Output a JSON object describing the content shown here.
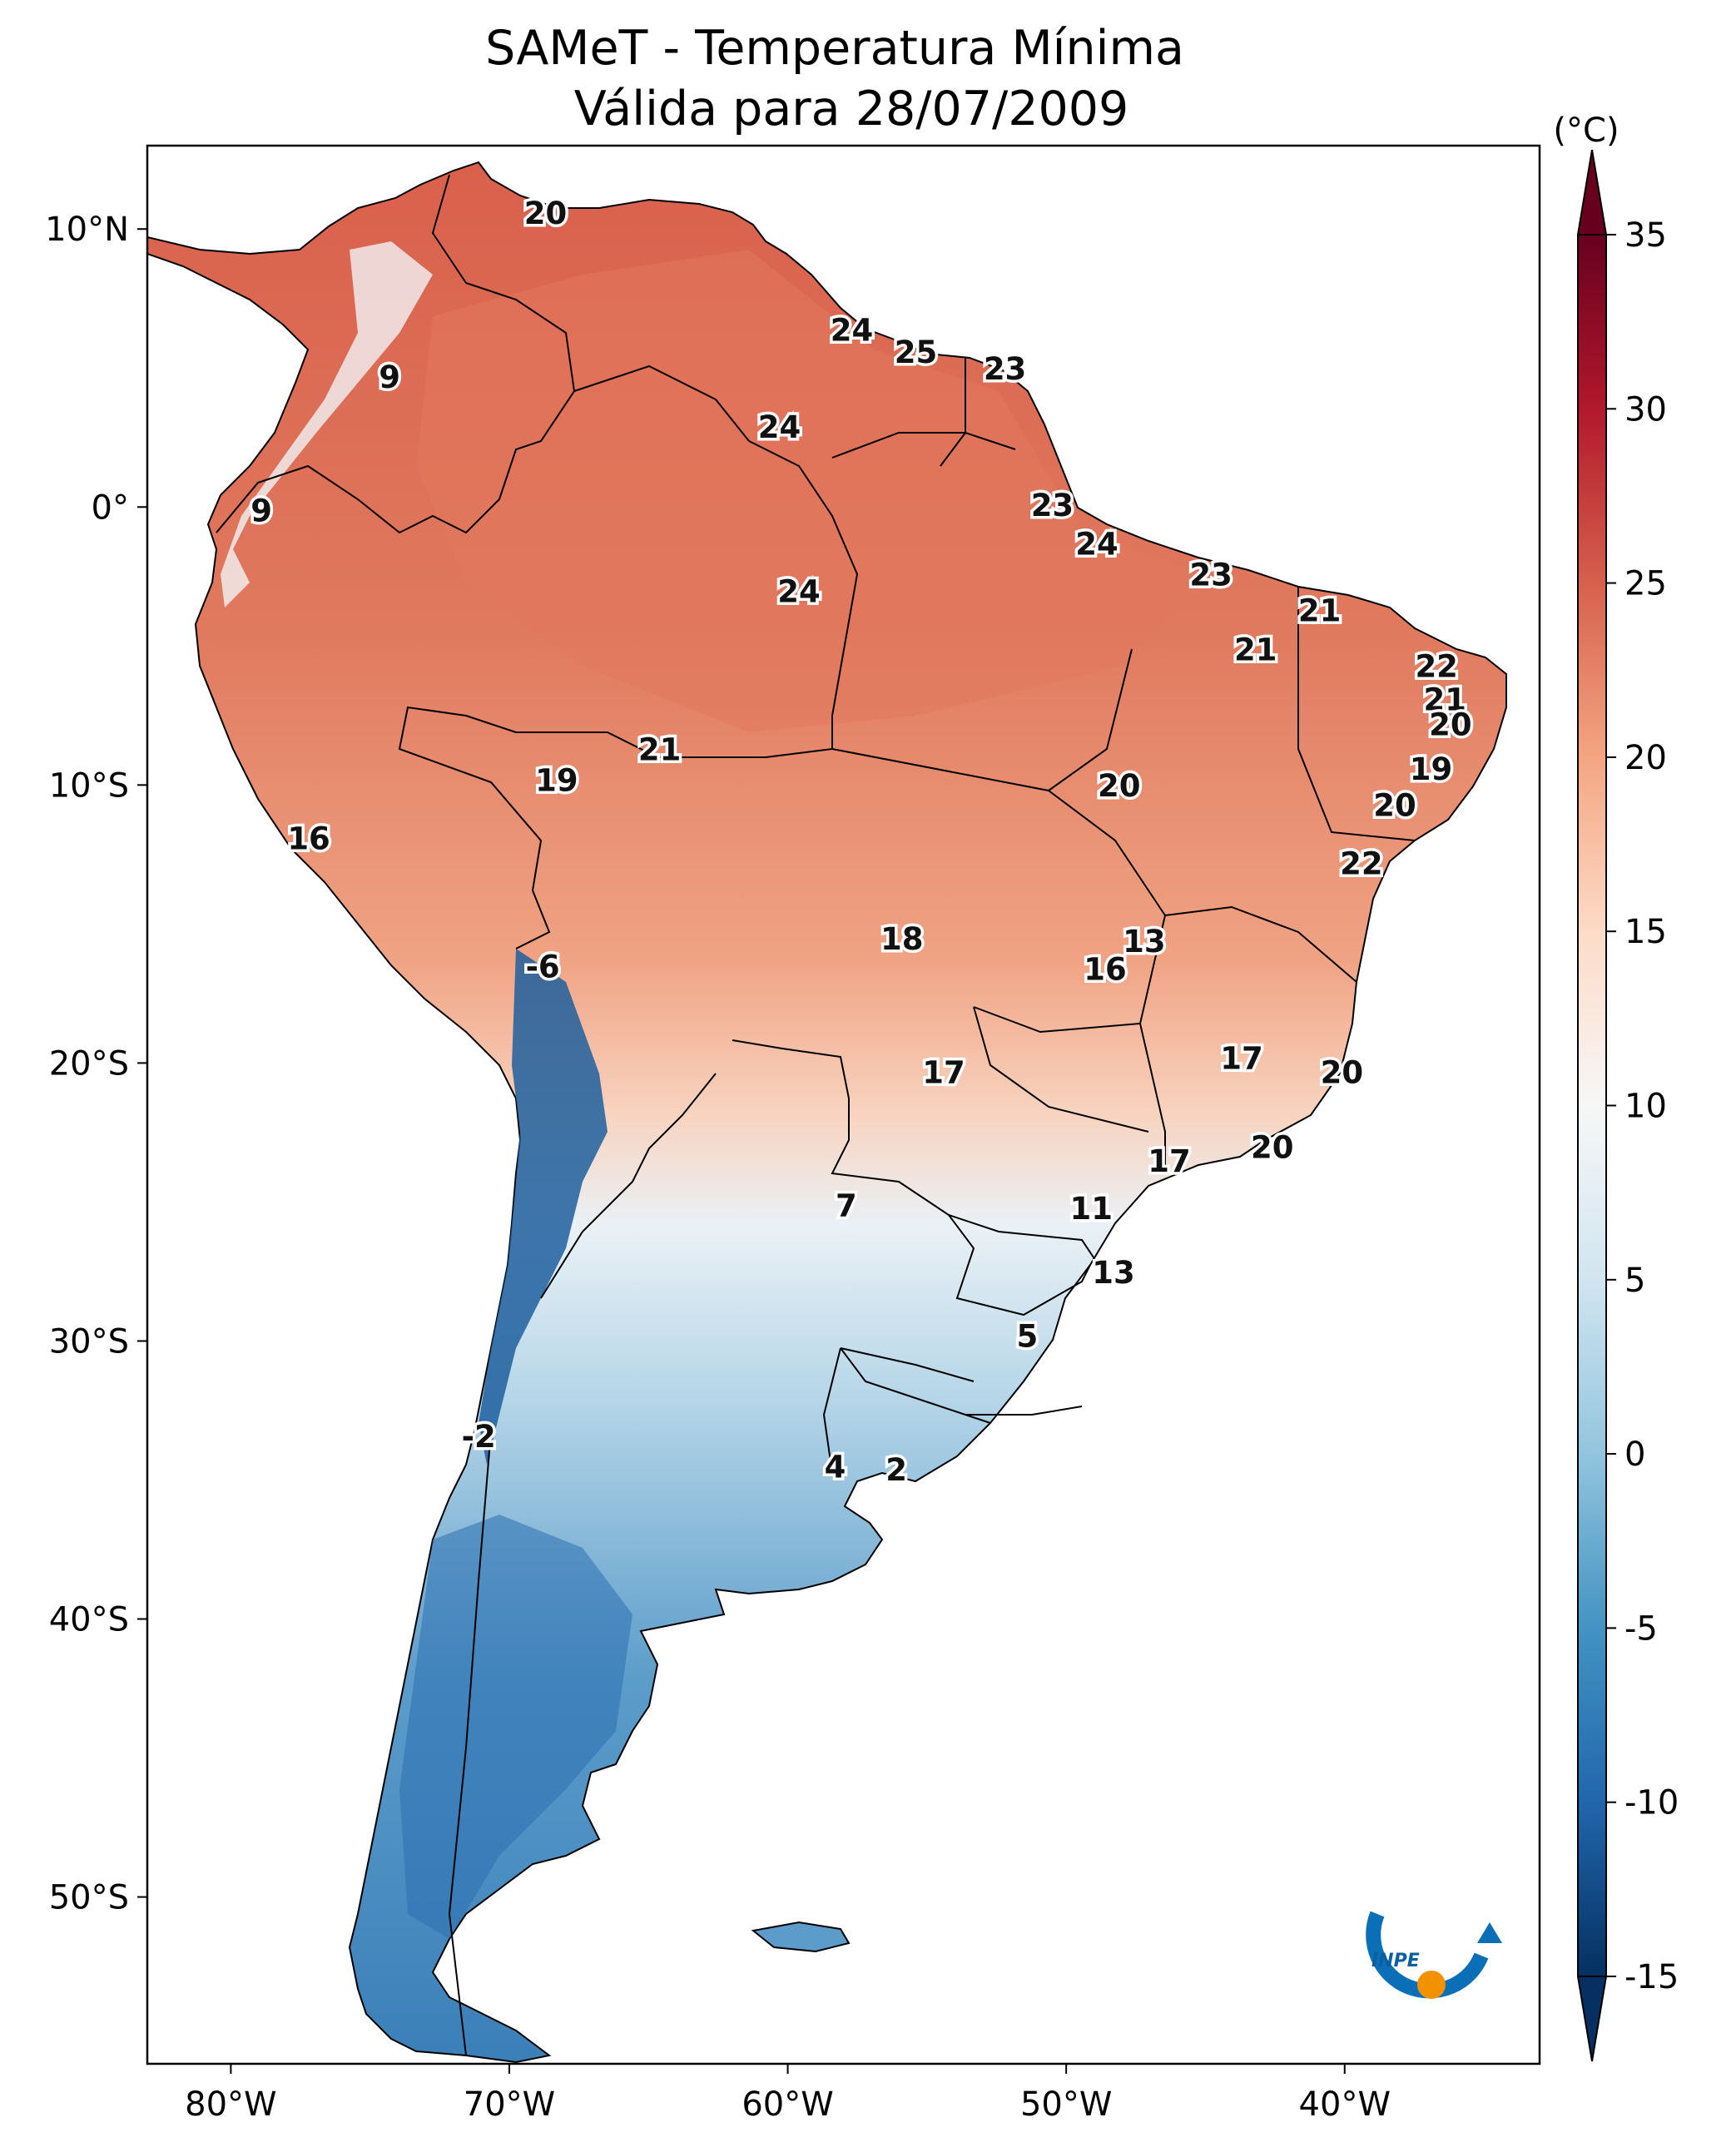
{
  "title": {
    "line1": "SAMeT - Temperatura Mínima",
    "line2": "Válida para 28/07/2009"
  },
  "axes": {
    "lon_range": [
      -83,
      -33
    ],
    "lat_range": [
      -56,
      13
    ],
    "x_ticks": [
      {
        "value": -80,
        "label": "80°W"
      },
      {
        "value": -70,
        "label": "70°W"
      },
      {
        "value": -60,
        "label": "60°W"
      },
      {
        "value": -50,
        "label": "50°W"
      },
      {
        "value": -40,
        "label": "40°W"
      }
    ],
    "y_ticks": [
      {
        "value": 10,
        "label": "10°N"
      },
      {
        "value": 0,
        "label": "0°"
      },
      {
        "value": -10,
        "label": "10°S"
      },
      {
        "value": -20,
        "label": "20°S"
      },
      {
        "value": -30,
        "label": "30°S"
      },
      {
        "value": -40,
        "label": "40°S"
      },
      {
        "value": -50,
        "label": "50°S"
      }
    ]
  },
  "colorbar": {
    "unit": "(°C)",
    "min": -15,
    "max": 35,
    "extend": "both",
    "ticks": [
      {
        "value": 35,
        "label": "35"
      },
      {
        "value": 30,
        "label": "30"
      },
      {
        "value": 25,
        "label": "25"
      },
      {
        "value": 20,
        "label": "20"
      },
      {
        "value": 15,
        "label": "15"
      },
      {
        "value": 10,
        "label": "10"
      },
      {
        "value": 5,
        "label": "5"
      },
      {
        "value": 0,
        "label": "0"
      },
      {
        "value": -5,
        "label": "-5"
      },
      {
        "value": -10,
        "label": "-10"
      },
      {
        "value": -15,
        "label": "-15"
      }
    ],
    "colormap": "RdBu_r"
  },
  "value_labels": [
    {
      "lon": -68.7,
      "lat": 10.5,
      "value": "20"
    },
    {
      "lon": -74.3,
      "lat": 4.6,
      "value": "9"
    },
    {
      "lon": -57.7,
      "lat": 6.3,
      "value": "24"
    },
    {
      "lon": -55.4,
      "lat": 5.5,
      "value": "25"
    },
    {
      "lon": -52.2,
      "lat": 4.9,
      "value": "23"
    },
    {
      "lon": -60.3,
      "lat": 2.8,
      "value": "24"
    },
    {
      "lon": -78.9,
      "lat": -0.2,
      "value": "9"
    },
    {
      "lon": -50.5,
      "lat": 0.0,
      "value": "23"
    },
    {
      "lon": -48.9,
      "lat": -1.4,
      "value": "24"
    },
    {
      "lon": -59.6,
      "lat": -3.1,
      "value": "24"
    },
    {
      "lon": -44.8,
      "lat": -2.5,
      "value": "23"
    },
    {
      "lon": -40.9,
      "lat": -3.8,
      "value": "21"
    },
    {
      "lon": -43.2,
      "lat": -5.2,
      "value": "21"
    },
    {
      "lon": -36.7,
      "lat": -5.8,
      "value": "22"
    },
    {
      "lon": -36.4,
      "lat": -7.0,
      "value": "21"
    },
    {
      "lon": -36.2,
      "lat": -7.9,
      "value": "20"
    },
    {
      "lon": -64.6,
      "lat": -8.8,
      "value": "21"
    },
    {
      "lon": -68.3,
      "lat": -9.9,
      "value": "19"
    },
    {
      "lon": -36.9,
      "lat": -9.5,
      "value": "19"
    },
    {
      "lon": -48.1,
      "lat": -10.1,
      "value": "20"
    },
    {
      "lon": -38.2,
      "lat": -10.8,
      "value": "20"
    },
    {
      "lon": -39.4,
      "lat": -12.9,
      "value": "22"
    },
    {
      "lon": -77.2,
      "lat": -12.0,
      "value": "16"
    },
    {
      "lon": -55.9,
      "lat": -15.6,
      "value": "18"
    },
    {
      "lon": -47.2,
      "lat": -15.7,
      "value": "13"
    },
    {
      "lon": -48.6,
      "lat": -16.7,
      "value": "16"
    },
    {
      "lon": -68.8,
      "lat": -16.6,
      "value": "-6"
    },
    {
      "lon": -54.4,
      "lat": -20.4,
      "value": "17"
    },
    {
      "lon": -43.7,
      "lat": -19.9,
      "value": "17"
    },
    {
      "lon": -40.1,
      "lat": -20.4,
      "value": "20"
    },
    {
      "lon": -42.6,
      "lat": -23.1,
      "value": "20"
    },
    {
      "lon": -46.3,
      "lat": -23.6,
      "value": "17"
    },
    {
      "lon": -57.9,
      "lat": -25.2,
      "value": "7"
    },
    {
      "lon": -49.1,
      "lat": -25.3,
      "value": "11"
    },
    {
      "lon": -48.3,
      "lat": -27.6,
      "value": "13"
    },
    {
      "lon": -51.4,
      "lat": -29.9,
      "value": "5"
    },
    {
      "lon": -71.1,
      "lat": -33.5,
      "value": "-2"
    },
    {
      "lon": -58.3,
      "lat": -34.6,
      "value": "4"
    },
    {
      "lon": -56.1,
      "lat": -34.7,
      "value": "2"
    }
  ],
  "logo": {
    "text": "INPE"
  }
}
